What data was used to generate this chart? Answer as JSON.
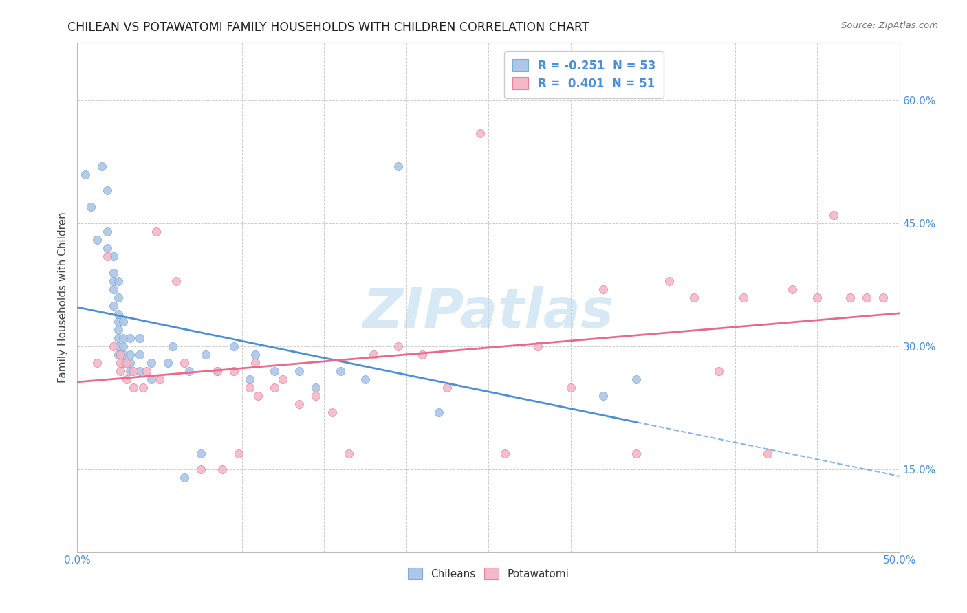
{
  "title": "CHILEAN VS POTAWATOMI FAMILY HOUSEHOLDS WITH CHILDREN CORRELATION CHART",
  "source": "Source: ZipAtlas.com",
  "ylabel": "Family Households with Children",
  "xmin": 0.0,
  "xmax": 0.5,
  "ymin": 0.05,
  "ymax": 0.67,
  "R_chilean": -0.251,
  "N_chilean": 53,
  "R_potawatomi": 0.401,
  "N_potawatomi": 51,
  "color_chilean": "#aec6e8",
  "color_potawatomi": "#f4b8c8",
  "color_edge_chilean": "#7aafd4",
  "color_edge_potawatomi": "#e8829a",
  "color_line_chilean": "#4a90d9",
  "color_line_potawatomi": "#e8698a",
  "yticks": [
    0.15,
    0.3,
    0.45,
    0.6
  ],
  "ytick_labels": [
    "15.0%",
    "30.0%",
    "45.0%",
    "60.0%"
  ],
  "xticks": [
    0.0,
    0.05,
    0.1,
    0.15,
    0.2,
    0.25,
    0.3,
    0.35,
    0.4,
    0.45,
    0.5
  ],
  "chilean_x": [
    0.005,
    0.008,
    0.012,
    0.015,
    0.018,
    0.018,
    0.018,
    0.022,
    0.022,
    0.022,
    0.022,
    0.022,
    0.025,
    0.025,
    0.025,
    0.025,
    0.025,
    0.025,
    0.025,
    0.025,
    0.028,
    0.028,
    0.028,
    0.028,
    0.028,
    0.032,
    0.032,
    0.032,
    0.032,
    0.038,
    0.038,
    0.038,
    0.045,
    0.045,
    0.055,
    0.058,
    0.065,
    0.068,
    0.075,
    0.078,
    0.085,
    0.095,
    0.105,
    0.108,
    0.12,
    0.135,
    0.145,
    0.16,
    0.175,
    0.195,
    0.22,
    0.32,
    0.34
  ],
  "chilean_y": [
    0.51,
    0.47,
    0.43,
    0.52,
    0.42,
    0.44,
    0.49,
    0.35,
    0.37,
    0.38,
    0.39,
    0.41,
    0.29,
    0.3,
    0.31,
    0.32,
    0.33,
    0.34,
    0.36,
    0.38,
    0.28,
    0.29,
    0.3,
    0.31,
    0.33,
    0.27,
    0.28,
    0.29,
    0.31,
    0.27,
    0.29,
    0.31,
    0.26,
    0.28,
    0.28,
    0.3,
    0.14,
    0.27,
    0.17,
    0.29,
    0.27,
    0.3,
    0.26,
    0.29,
    0.27,
    0.27,
    0.25,
    0.27,
    0.26,
    0.52,
    0.22,
    0.24,
    0.26
  ],
  "potawatomi_x": [
    0.012,
    0.018,
    0.022,
    0.026,
    0.026,
    0.026,
    0.03,
    0.03,
    0.034,
    0.034,
    0.04,
    0.042,
    0.048,
    0.05,
    0.06,
    0.065,
    0.075,
    0.085,
    0.088,
    0.095,
    0.098,
    0.105,
    0.108,
    0.11,
    0.12,
    0.125,
    0.135,
    0.145,
    0.155,
    0.165,
    0.18,
    0.195,
    0.21,
    0.225,
    0.245,
    0.26,
    0.28,
    0.3,
    0.32,
    0.34,
    0.36,
    0.375,
    0.39,
    0.405,
    0.42,
    0.435,
    0.45,
    0.46,
    0.47,
    0.48,
    0.49
  ],
  "potawatomi_y": [
    0.28,
    0.41,
    0.3,
    0.27,
    0.28,
    0.29,
    0.26,
    0.28,
    0.25,
    0.27,
    0.25,
    0.27,
    0.44,
    0.26,
    0.38,
    0.28,
    0.15,
    0.27,
    0.15,
    0.27,
    0.17,
    0.25,
    0.28,
    0.24,
    0.25,
    0.26,
    0.23,
    0.24,
    0.22,
    0.17,
    0.29,
    0.3,
    0.29,
    0.25,
    0.56,
    0.17,
    0.3,
    0.25,
    0.37,
    0.17,
    0.38,
    0.36,
    0.27,
    0.36,
    0.17,
    0.37,
    0.36,
    0.46,
    0.36,
    0.36,
    0.36
  ]
}
